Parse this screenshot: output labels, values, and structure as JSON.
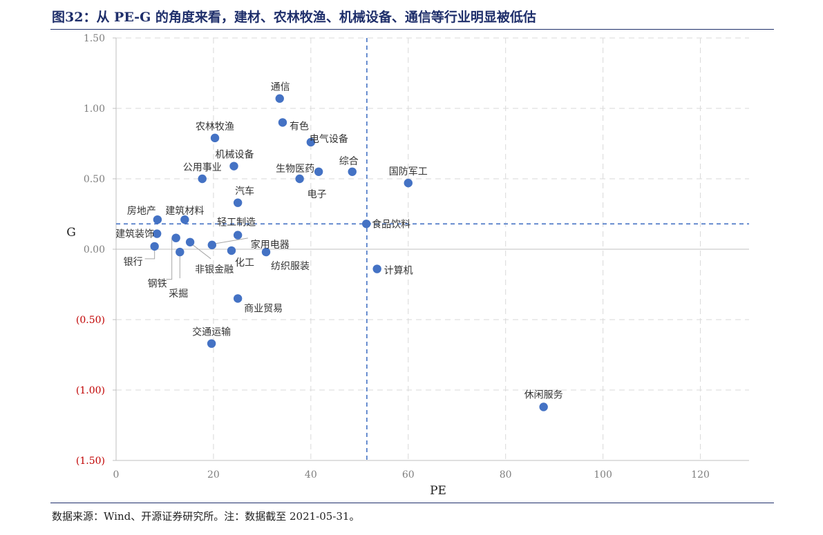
{
  "header": {
    "title": "图32：从 PE-G 的角度来看，建材、农林牧渔、机械设备、通信等行业明显被低估"
  },
  "footer": {
    "source": "数据来源：Wind、开源证券研究所。注：数据截至 2021-05-31。"
  },
  "colors": {
    "point": "#4472c4",
    "title": "#1f2f6b",
    "negative_tick": "#c00000",
    "grid": "#d9d9d9",
    "axis": "#bfbfbf"
  },
  "chart_data": {
    "type": "scatter",
    "title": "",
    "xlabel": "PE",
    "ylabel": "G",
    "xlim": [
      0,
      130
    ],
    "ylim": [
      -1.5,
      1.5
    ],
    "x_ticks": [
      0,
      20,
      40,
      60,
      80,
      100,
      120
    ],
    "x_tick_labels": [
      "0",
      "20",
      "40",
      "60",
      "80",
      "100",
      "120"
    ],
    "y_ticks": [
      1.5,
      1.0,
      0.5,
      0.0,
      -0.5,
      -1.0,
      -1.5
    ],
    "y_tick_labels": [
      "1.50",
      "1.00",
      "0.50",
      "0.00",
      "(0.50)",
      "(1.00)",
      "(1.50)"
    ],
    "grid": true,
    "reference_lines": {
      "x": 51.5,
      "y": 0.18
    },
    "points": [
      {
        "name": "通信",
        "x": 33.6,
        "y": 1.07
      },
      {
        "name": "有色",
        "x": 34.2,
        "y": 0.9
      },
      {
        "name": "农林牧渔",
        "x": 20.3,
        "y": 0.79
      },
      {
        "name": "电气设备",
        "x": 40.0,
        "y": 0.76
      },
      {
        "name": "机械设备",
        "x": 24.2,
        "y": 0.59
      },
      {
        "name": "生物医药",
        "x": 41.6,
        "y": 0.55
      },
      {
        "name": "综合",
        "x": 48.5,
        "y": 0.55
      },
      {
        "name": "公用事业",
        "x": 17.7,
        "y": 0.5
      },
      {
        "name": "电子",
        "x": 37.7,
        "y": 0.5
      },
      {
        "name": "国防军工",
        "x": 60.0,
        "y": 0.47
      },
      {
        "name": "汽车",
        "x": 25.0,
        "y": 0.33
      },
      {
        "name": "房地产",
        "x": 8.5,
        "y": 0.21
      },
      {
        "name": "建筑材料",
        "x": 14.1,
        "y": 0.21
      },
      {
        "name": "食品饮料",
        "x": 51.4,
        "y": 0.18
      },
      {
        "name": "建筑装饰",
        "x": 8.4,
        "y": 0.11
      },
      {
        "name": "轻工制造",
        "x": 25.0,
        "y": 0.1
      },
      {
        "name": "钢铁",
        "x": 12.3,
        "y": 0.08
      },
      {
        "name": "非银金融",
        "x": 15.2,
        "y": 0.05
      },
      {
        "name": "家用电器",
        "x": 19.7,
        "y": 0.03
      },
      {
        "name": "银行",
        "x": 7.9,
        "y": 0.02
      },
      {
        "name": "化工",
        "x": 23.7,
        "y": -0.01
      },
      {
        "name": "采掘",
        "x": 13.1,
        "y": -0.02
      },
      {
        "name": "纺织服装",
        "x": 30.8,
        "y": -0.02
      },
      {
        "name": "计算机",
        "x": 53.6,
        "y": -0.14
      },
      {
        "name": "商业贸易",
        "x": 25.0,
        "y": -0.35
      },
      {
        "name": "交通运输",
        "x": 19.6,
        "y": -0.67
      },
      {
        "name": "休闲服务",
        "x": 87.8,
        "y": -1.12
      }
    ]
  }
}
